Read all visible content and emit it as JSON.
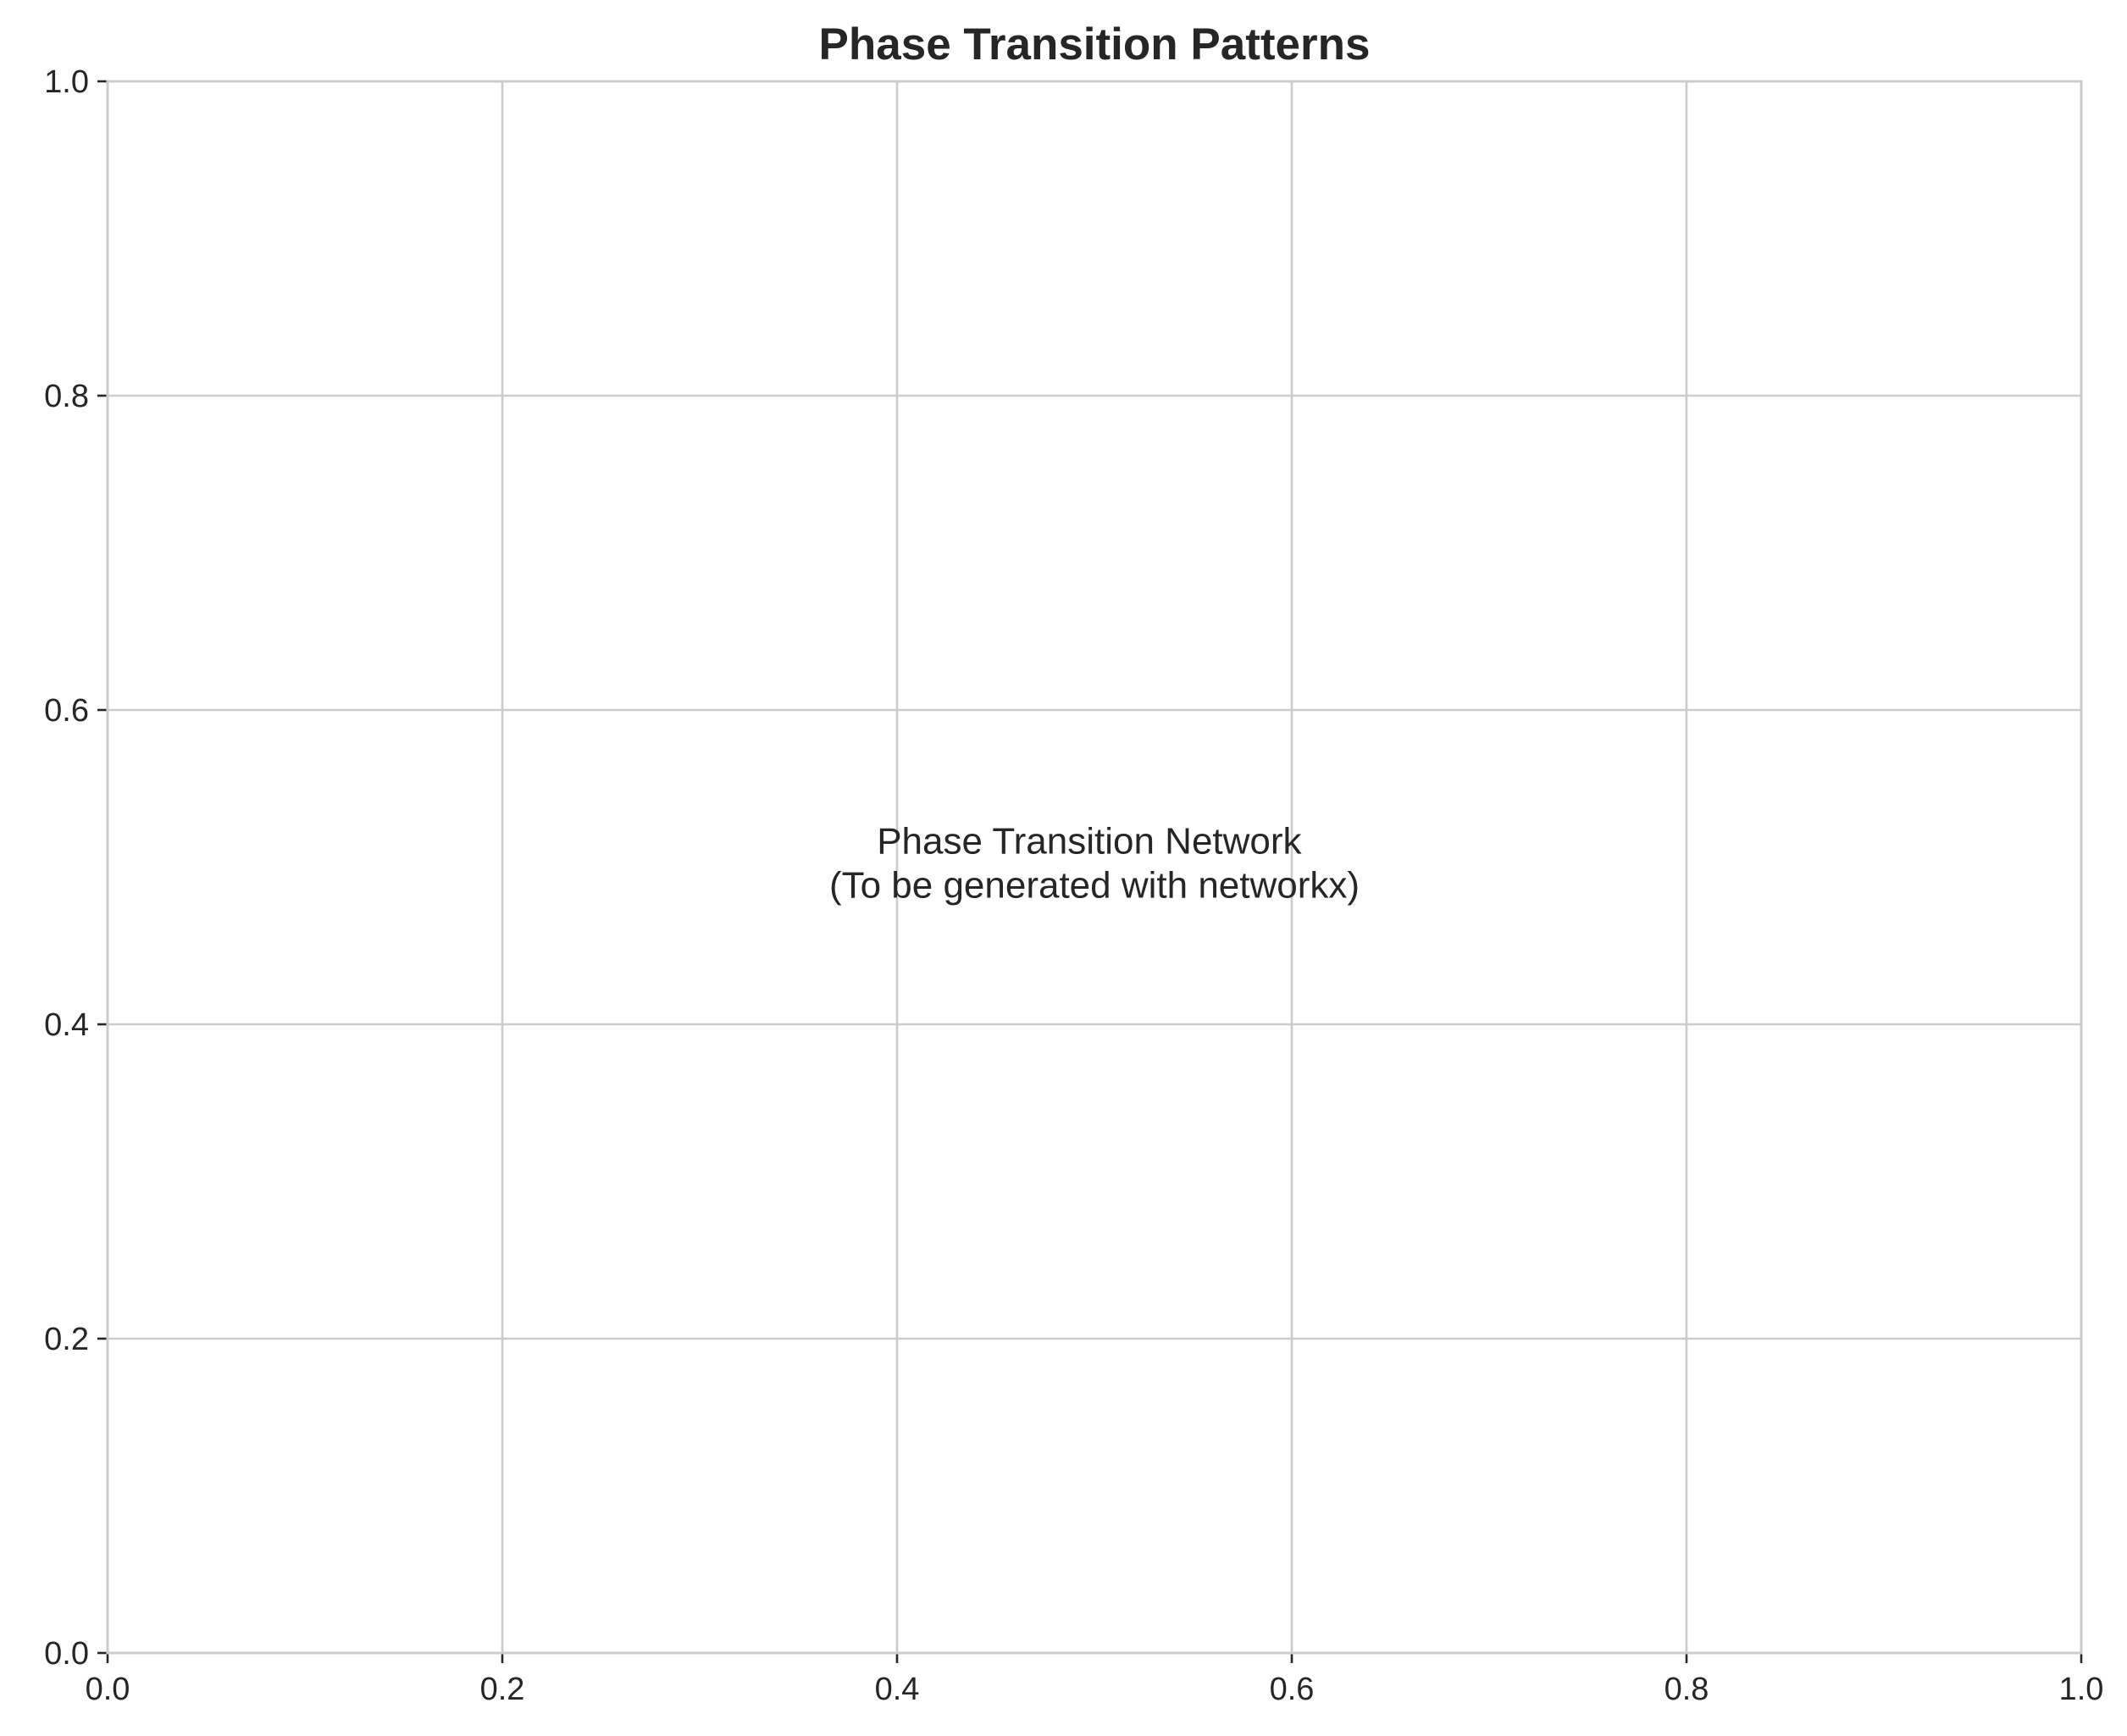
{
  "chart_data": {
    "type": "scatter",
    "title": "Phase Transition Patterns",
    "xlabel": "",
    "ylabel": "",
    "xlim": [
      0.0,
      1.0
    ],
    "ylim": [
      0.0,
      1.0
    ],
    "x_ticks": [
      0.0,
      0.2,
      0.4,
      0.6,
      0.8,
      1.0
    ],
    "y_ticks": [
      0.0,
      0.2,
      0.4,
      0.6,
      0.8,
      1.0
    ],
    "x_tick_labels": [
      "0.0",
      "0.2",
      "0.4",
      "0.6",
      "0.8",
      "1.0"
    ],
    "y_tick_labels": [
      "0.0",
      "0.2",
      "0.4",
      "0.6",
      "0.8",
      "1.0"
    ],
    "grid": true,
    "series": [],
    "annotation": {
      "lines": [
        "Phase Transition Network",
        "(To be generated with networkx)"
      ],
      "x": 0.5,
      "y": 0.5
    },
    "colors": {
      "grid": "#cccccc",
      "spine": "#cccccc",
      "text": "#262626",
      "background": "#ffffff"
    }
  }
}
